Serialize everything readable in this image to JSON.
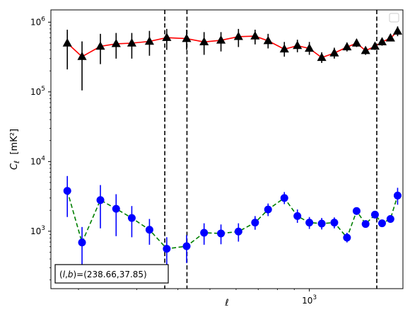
{
  "chart_data": {
    "type": "scatter",
    "title": "",
    "xlabel": "ℓ",
    "ylabel": "C_ℓ  [mK²]",
    "x_scale": "log",
    "y_scale": "log",
    "xlim": [
      165,
      1920
    ],
    "ylim": [
      150,
      1500000
    ],
    "x_tick_labels": [
      {
        "value": 1000,
        "base": "10",
        "exp": "3"
      }
    ],
    "y_tick_labels": [
      {
        "value": 1000,
        "base": "10",
        "exp": "3"
      },
      {
        "value": 10000,
        "base": "10",
        "exp": "4"
      },
      {
        "value": 100000,
        "base": "10",
        "exp": "5"
      },
      {
        "value": 1000000,
        "base": "10",
        "exp": "6"
      }
    ],
    "vlines": [
      365,
      426,
      1600
    ],
    "legend": {
      "placement": "top-right",
      "entries": []
    },
    "annotation": {
      "text": "(l,b)=(238.66,37.85)",
      "placement": "bottom-left"
    },
    "series": [
      {
        "marker": "triangle",
        "marker_color": "#000000",
        "line_color": "#ff0000",
        "line_style": "solid",
        "points": [
          {
            "x": 185,
            "y": 500000,
            "lo": 210000,
            "hi": 780000
          },
          {
            "x": 205,
            "y": 320000,
            "lo": 105000,
            "hi": 530000
          },
          {
            "x": 233,
            "y": 450000,
            "lo": 250000,
            "hi": 680000
          },
          {
            "x": 260,
            "y": 490000,
            "lo": 300000,
            "hi": 700000
          },
          {
            "x": 290,
            "y": 500000,
            "lo": 300000,
            "hi": 700000
          },
          {
            "x": 328,
            "y": 530000,
            "lo": 330000,
            "hi": 750000
          },
          {
            "x": 370,
            "y": 600000,
            "lo": 400000,
            "hi": 800000
          },
          {
            "x": 425,
            "y": 580000,
            "lo": 400000,
            "hi": 780000
          },
          {
            "x": 480,
            "y": 520000,
            "lo": 340000,
            "hi": 720000
          },
          {
            "x": 540,
            "y": 550000,
            "lo": 380000,
            "hi": 720000
          },
          {
            "x": 610,
            "y": 620000,
            "lo": 440000,
            "hi": 800000
          },
          {
            "x": 685,
            "y": 630000,
            "lo": 480000,
            "hi": 780000
          },
          {
            "x": 750,
            "y": 540000,
            "lo": 420000,
            "hi": 680000
          },
          {
            "x": 840,
            "y": 410000,
            "lo": 320000,
            "hi": 520000
          },
          {
            "x": 920,
            "y": 460000,
            "lo": 370000,
            "hi": 560000
          },
          {
            "x": 1000,
            "y": 420000,
            "lo": 340000,
            "hi": 520000
          },
          {
            "x": 1090,
            "y": 310000,
            "lo": 260000,
            "hi": 370000
          },
          {
            "x": 1190,
            "y": 360000,
            "lo": 300000,
            "hi": 430000
          },
          {
            "x": 1300,
            "y": 440000,
            "lo": 380000,
            "hi": 510000
          },
          {
            "x": 1390,
            "y": 500000,
            "lo": 440000,
            "hi": 570000
          },
          {
            "x": 1480,
            "y": 390000,
            "lo": 340000,
            "hi": 440000
          },
          {
            "x": 1580,
            "y": 450000,
            "lo": 400000,
            "hi": 510000
          },
          {
            "x": 1660,
            "y": 520000,
            "lo": 460000,
            "hi": 580000
          },
          {
            "x": 1760,
            "y": 590000,
            "lo": 530000,
            "hi": 660000
          },
          {
            "x": 1850,
            "y": 740000,
            "lo": 630000,
            "hi": 870000
          }
        ]
      },
      {
        "marker": "circle",
        "marker_color": "#0000ff",
        "line_color": "#008000",
        "line_style": "dashed",
        "points": [
          {
            "x": 185,
            "y": 3800,
            "lo": 1600,
            "hi": 6200
          },
          {
            "x": 205,
            "y": 690,
            "lo": 270,
            "hi": 1150
          },
          {
            "x": 233,
            "y": 2800,
            "lo": 1100,
            "hi": 4600
          },
          {
            "x": 260,
            "y": 2100,
            "lo": 850,
            "hi": 3400
          },
          {
            "x": 290,
            "y": 1550,
            "lo": 820,
            "hi": 2300
          },
          {
            "x": 328,
            "y": 1050,
            "lo": 640,
            "hi": 1500
          },
          {
            "x": 370,
            "y": 560,
            "lo": 320,
            "hi": 820
          },
          {
            "x": 425,
            "y": 610,
            "lo": 350,
            "hi": 880
          },
          {
            "x": 480,
            "y": 950,
            "lo": 640,
            "hi": 1300
          },
          {
            "x": 540,
            "y": 930,
            "lo": 650,
            "hi": 1250
          },
          {
            "x": 610,
            "y": 990,
            "lo": 710,
            "hi": 1300
          },
          {
            "x": 685,
            "y": 1330,
            "lo": 1050,
            "hi": 1650
          },
          {
            "x": 750,
            "y": 2050,
            "lo": 1650,
            "hi": 2500
          },
          {
            "x": 840,
            "y": 3000,
            "lo": 2450,
            "hi": 3650
          },
          {
            "x": 920,
            "y": 1650,
            "lo": 1320,
            "hi": 2050
          },
          {
            "x": 1000,
            "y": 1330,
            "lo": 1080,
            "hi": 1600
          },
          {
            "x": 1090,
            "y": 1290,
            "lo": 1060,
            "hi": 1550
          },
          {
            "x": 1190,
            "y": 1330,
            "lo": 1100,
            "hi": 1580
          },
          {
            "x": 1300,
            "y": 810,
            "lo": 690,
            "hi": 950
          },
          {
            "x": 1390,
            "y": 1950,
            "lo": 1720,
            "hi": 2200
          },
          {
            "x": 1480,
            "y": 1270,
            "lo": 1120,
            "hi": 1430
          },
          {
            "x": 1580,
            "y": 1730,
            "lo": 1550,
            "hi": 1930
          },
          {
            "x": 1660,
            "y": 1300,
            "lo": 1150,
            "hi": 1460
          },
          {
            "x": 1760,
            "y": 1500,
            "lo": 1320,
            "hi": 1700
          },
          {
            "x": 1850,
            "y": 3250,
            "lo": 2400,
            "hi": 4200
          }
        ]
      }
    ]
  }
}
